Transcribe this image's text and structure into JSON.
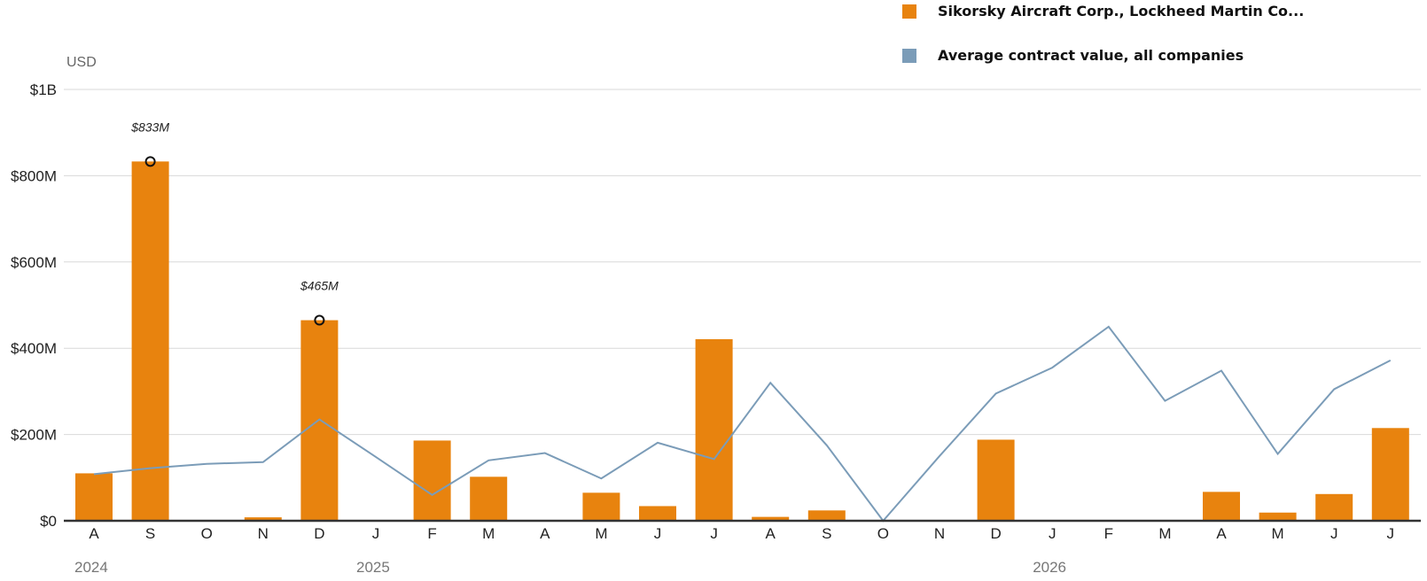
{
  "legend": {
    "company_label": "Sikorsky Aircraft Corp., Lockheed Martin Co...",
    "average_label": "Average contract value, all companies"
  },
  "colors": {
    "bar": "#E8830E",
    "line": "#7B9CB8",
    "grid": "#d9d9d9",
    "axis": "#333333"
  },
  "chart_data": {
    "type": "bar",
    "unit_label": "USD",
    "y_ticks": [
      {
        "value": 0,
        "label": "$0"
      },
      {
        "value": 200,
        "label": "$200M"
      },
      {
        "value": 400,
        "label": "$400M"
      },
      {
        "value": 600,
        "label": "$600M"
      },
      {
        "value": 800,
        "label": "$800M"
      },
      {
        "value": 1000,
        "label": "$1B"
      }
    ],
    "ylim": [
      0,
      1000
    ],
    "categories": [
      "A",
      "S",
      "O",
      "N",
      "D",
      "J",
      "F",
      "M",
      "A",
      "M",
      "J",
      "J",
      "A",
      "S",
      "O",
      "N",
      "D",
      "J",
      "F",
      "M",
      "A",
      "M",
      "J",
      "J"
    ],
    "year_labels": [
      {
        "index": 0,
        "label": "2024"
      },
      {
        "index": 5,
        "label": "2025"
      },
      {
        "index": 17,
        "label": "2026"
      }
    ],
    "series": [
      {
        "name": "Sikorsky Aircraft Corp., Lockheed Martin Co...",
        "kind": "bar",
        "values": [
          110,
          833,
          0,
          8,
          465,
          0,
          186,
          102,
          0,
          65,
          34,
          421,
          9,
          24,
          0,
          0,
          188,
          0,
          0,
          0,
          67,
          19,
          62,
          215
        ]
      },
      {
        "name": "Average contract value, all companies",
        "kind": "line",
        "values": [
          108,
          122,
          132,
          136,
          235,
          148,
          60,
          140,
          157,
          98,
          181,
          143,
          320,
          175,
          0,
          150,
          295,
          355,
          450,
          278,
          348,
          155,
          305,
          372
        ]
      }
    ],
    "annotations": [
      {
        "index": 1,
        "value": 833,
        "label": "$833M"
      },
      {
        "index": 4,
        "value": 465,
        "label": "$465M"
      }
    ],
    "grid": true,
    "legend_position": "top-right"
  }
}
